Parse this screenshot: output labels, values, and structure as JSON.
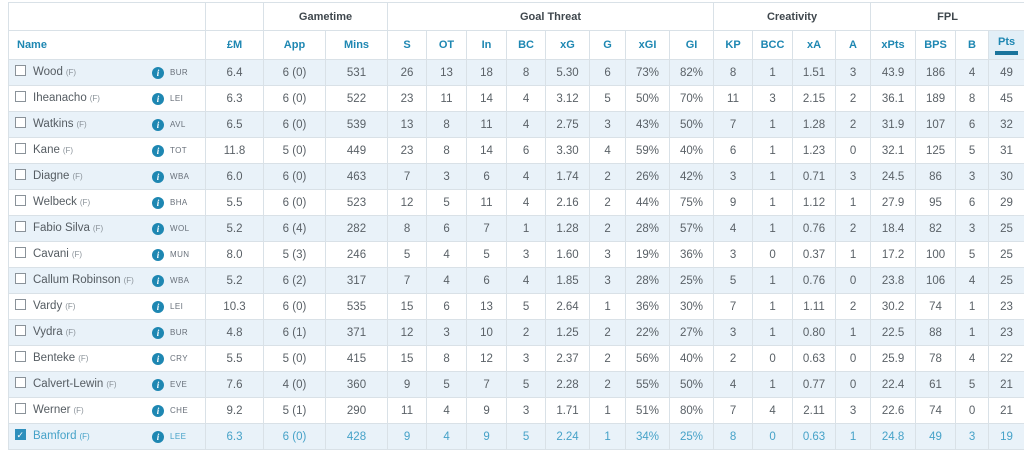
{
  "table": {
    "group_headers": {
      "gametime": "Gametime",
      "goal_threat": "Goal Threat",
      "creativity": "Creativity",
      "fpl": "FPL"
    },
    "columns": {
      "name": "Name",
      "price": "£M",
      "app": "App",
      "mins": "Mins",
      "s": "S",
      "ot": "OT",
      "in": "In",
      "bc": "BC",
      "xg": "xG",
      "g": "G",
      "xgi": "xGI",
      "gi": "GI",
      "kp": "KP",
      "bcc": "BCC",
      "xa": "xA",
      "a": "A",
      "xpts": "xPts",
      "bps": "BPS",
      "b": "B",
      "pts": "Pts"
    },
    "sorted_column": "pts",
    "info_icon_glyph": "i",
    "players": [
      {
        "name": "Wood",
        "position": "(F)",
        "team": "BUR",
        "selected": false,
        "stats": {
          "price": "6.4",
          "app": "6 (0)",
          "mins": "531",
          "s": "26",
          "ot": "13",
          "in": "18",
          "bc": "8",
          "xg": "5.30",
          "g": "6",
          "xgi": "73%",
          "gi": "82%",
          "kp": "8",
          "bcc": "1",
          "xa": "1.51",
          "a": "3",
          "xpts": "43.9",
          "bps": "186",
          "b": "4",
          "pts": "49"
        }
      },
      {
        "name": "Iheanacho",
        "position": "(F)",
        "team": "LEI",
        "selected": false,
        "stats": {
          "price": "6.3",
          "app": "6 (0)",
          "mins": "522",
          "s": "23",
          "ot": "11",
          "in": "14",
          "bc": "4",
          "xg": "3.12",
          "g": "5",
          "xgi": "50%",
          "gi": "70%",
          "kp": "11",
          "bcc": "3",
          "xa": "2.15",
          "a": "2",
          "xpts": "36.1",
          "bps": "189",
          "b": "8",
          "pts": "45"
        }
      },
      {
        "name": "Watkins",
        "position": "(F)",
        "team": "AVL",
        "selected": false,
        "stats": {
          "price": "6.5",
          "app": "6 (0)",
          "mins": "539",
          "s": "13",
          "ot": "8",
          "in": "11",
          "bc": "4",
          "xg": "2.75",
          "g": "3",
          "xgi": "43%",
          "gi": "50%",
          "kp": "7",
          "bcc": "1",
          "xa": "1.28",
          "a": "2",
          "xpts": "31.9",
          "bps": "107",
          "b": "6",
          "pts": "32"
        }
      },
      {
        "name": "Kane",
        "position": "(F)",
        "team": "TOT",
        "selected": false,
        "stats": {
          "price": "11.8",
          "app": "5 (0)",
          "mins": "449",
          "s": "23",
          "ot": "8",
          "in": "14",
          "bc": "6",
          "xg": "3.30",
          "g": "4",
          "xgi": "59%",
          "gi": "40%",
          "kp": "6",
          "bcc": "1",
          "xa": "1.23",
          "a": "0",
          "xpts": "32.1",
          "bps": "125",
          "b": "5",
          "pts": "31"
        }
      },
      {
        "name": "Diagne",
        "position": "(F)",
        "team": "WBA",
        "selected": false,
        "stats": {
          "price": "6.0",
          "app": "6 (0)",
          "mins": "463",
          "s": "7",
          "ot": "3",
          "in": "6",
          "bc": "4",
          "xg": "1.74",
          "g": "2",
          "xgi": "26%",
          "gi": "42%",
          "kp": "3",
          "bcc": "1",
          "xa": "0.71",
          "a": "3",
          "xpts": "24.5",
          "bps": "86",
          "b": "3",
          "pts": "30"
        }
      },
      {
        "name": "Welbeck",
        "position": "(F)",
        "team": "BHA",
        "selected": false,
        "stats": {
          "price": "5.5",
          "app": "6 (0)",
          "mins": "523",
          "s": "12",
          "ot": "5",
          "in": "11",
          "bc": "4",
          "xg": "2.16",
          "g": "2",
          "xgi": "44%",
          "gi": "75%",
          "kp": "9",
          "bcc": "1",
          "xa": "1.12",
          "a": "1",
          "xpts": "27.9",
          "bps": "95",
          "b": "6",
          "pts": "29"
        }
      },
      {
        "name": "Fabio Silva",
        "position": "(F)",
        "team": "WOL",
        "selected": false,
        "stats": {
          "price": "5.2",
          "app": "6 (4)",
          "mins": "282",
          "s": "8",
          "ot": "6",
          "in": "7",
          "bc": "1",
          "xg": "1.28",
          "g": "2",
          "xgi": "28%",
          "gi": "57%",
          "kp": "4",
          "bcc": "1",
          "xa": "0.76",
          "a": "2",
          "xpts": "18.4",
          "bps": "82",
          "b": "3",
          "pts": "25"
        }
      },
      {
        "name": "Cavani",
        "position": "(F)",
        "team": "MUN",
        "selected": false,
        "stats": {
          "price": "8.0",
          "app": "5 (3)",
          "mins": "246",
          "s": "5",
          "ot": "4",
          "in": "5",
          "bc": "3",
          "xg": "1.60",
          "g": "3",
          "xgi": "19%",
          "gi": "36%",
          "kp": "3",
          "bcc": "0",
          "xa": "0.37",
          "a": "1",
          "xpts": "17.2",
          "bps": "100",
          "b": "5",
          "pts": "25"
        }
      },
      {
        "name": "Callum Robinson",
        "position": "(F)",
        "team": "WBA",
        "selected": false,
        "stats": {
          "price": "5.2",
          "app": "6 (2)",
          "mins": "317",
          "s": "7",
          "ot": "4",
          "in": "6",
          "bc": "4",
          "xg": "1.85",
          "g": "3",
          "xgi": "28%",
          "gi": "25%",
          "kp": "5",
          "bcc": "1",
          "xa": "0.76",
          "a": "0",
          "xpts": "23.8",
          "bps": "106",
          "b": "4",
          "pts": "25"
        }
      },
      {
        "name": "Vardy",
        "position": "(F)",
        "team": "LEI",
        "selected": false,
        "stats": {
          "price": "10.3",
          "app": "6 (0)",
          "mins": "535",
          "s": "15",
          "ot": "6",
          "in": "13",
          "bc": "5",
          "xg": "2.64",
          "g": "1",
          "xgi": "36%",
          "gi": "30%",
          "kp": "7",
          "bcc": "1",
          "xa": "1.11",
          "a": "2",
          "xpts": "30.2",
          "bps": "74",
          "b": "1",
          "pts": "23"
        }
      },
      {
        "name": "Vydra",
        "position": "(F)",
        "team": "BUR",
        "selected": false,
        "stats": {
          "price": "4.8",
          "app": "6 (1)",
          "mins": "371",
          "s": "12",
          "ot": "3",
          "in": "10",
          "bc": "2",
          "xg": "1.25",
          "g": "2",
          "xgi": "22%",
          "gi": "27%",
          "kp": "3",
          "bcc": "1",
          "xa": "0.80",
          "a": "1",
          "xpts": "22.5",
          "bps": "88",
          "b": "1",
          "pts": "23"
        }
      },
      {
        "name": "Benteke",
        "position": "(F)",
        "team": "CRY",
        "selected": false,
        "stats": {
          "price": "5.5",
          "app": "5 (0)",
          "mins": "415",
          "s": "15",
          "ot": "8",
          "in": "12",
          "bc": "3",
          "xg": "2.37",
          "g": "2",
          "xgi": "56%",
          "gi": "40%",
          "kp": "2",
          "bcc": "0",
          "xa": "0.63",
          "a": "0",
          "xpts": "25.9",
          "bps": "78",
          "b": "4",
          "pts": "22"
        }
      },
      {
        "name": "Calvert-Lewin",
        "position": "(F)",
        "team": "EVE",
        "selected": false,
        "stats": {
          "price": "7.6",
          "app": "4 (0)",
          "mins": "360",
          "s": "9",
          "ot": "5",
          "in": "7",
          "bc": "5",
          "xg": "2.28",
          "g": "2",
          "xgi": "55%",
          "gi": "50%",
          "kp": "4",
          "bcc": "1",
          "xa": "0.77",
          "a": "0",
          "xpts": "22.4",
          "bps": "61",
          "b": "5",
          "pts": "21"
        }
      },
      {
        "name": "Werner",
        "position": "(F)",
        "team": "CHE",
        "selected": false,
        "stats": {
          "price": "9.2",
          "app": "5 (1)",
          "mins": "290",
          "s": "11",
          "ot": "4",
          "in": "9",
          "bc": "3",
          "xg": "1.71",
          "g": "1",
          "xgi": "51%",
          "gi": "80%",
          "kp": "7",
          "bcc": "4",
          "xa": "2.11",
          "a": "3",
          "xpts": "22.6",
          "bps": "74",
          "b": "0",
          "pts": "21"
        }
      },
      {
        "name": "Bamford",
        "position": "(F)",
        "team": "LEE",
        "selected": true,
        "stats": {
          "price": "6.3",
          "app": "6 (0)",
          "mins": "428",
          "s": "9",
          "ot": "4",
          "in": "9",
          "bc": "5",
          "xg": "2.24",
          "g": "1",
          "xgi": "34%",
          "gi": "25%",
          "kp": "8",
          "bcc": "0",
          "xa": "0.63",
          "a": "1",
          "xpts": "24.8",
          "bps": "49",
          "b": "3",
          "pts": "19"
        }
      }
    ]
  },
  "colors": {
    "header_blue": "#1e87b2",
    "row_stripe": "#e9f2f9",
    "selected_text": "#46a2c8",
    "sort_underline": "#19749c",
    "info_icon_bg": "#1e87b2"
  }
}
